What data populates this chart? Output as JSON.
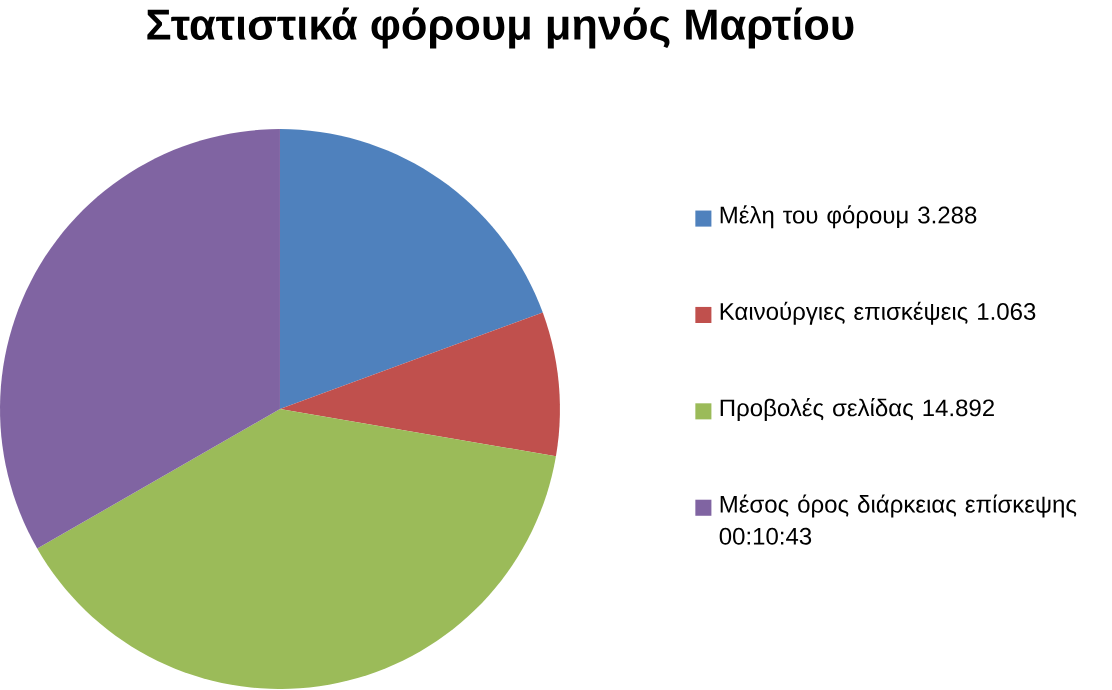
{
  "chart_data": {
    "type": "pie",
    "title": "Στατιστικά φόρουμ μηνός Μαρτίου",
    "categories": [
      "Μέλη του φόρουμ 3.288",
      "Καινούργιες επισκέψεις 1.063",
      "Προβολές σελίδας 14.892",
      "Μέσος όρος διάρκειας επίσκεψης  00:10:43"
    ],
    "values": [
      19.4,
      8.3,
      39.0,
      33.3
    ],
    "colors": [
      "#4f81bd",
      "#c0504d",
      "#9bbb59",
      "#8064a2"
    ],
    "legend": "right"
  }
}
